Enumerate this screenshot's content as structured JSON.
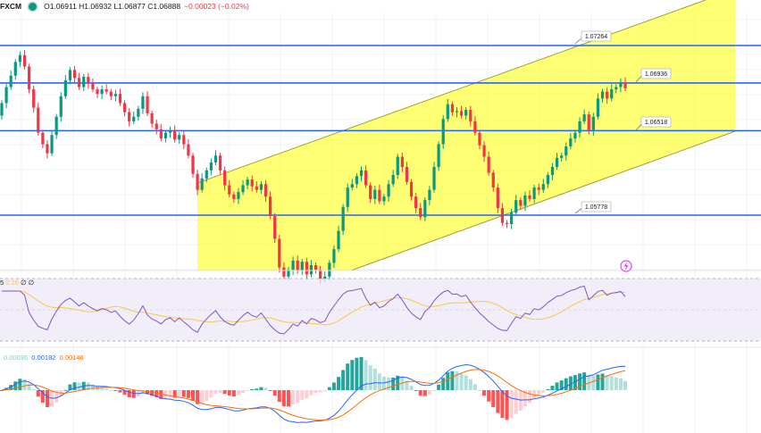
{
  "header": {
    "symbol": "FXCM",
    "ohlc": "O1.06911 H1.06932 L1.06877 C1.06888",
    "change": "−0.00023 (−0.02%)"
  },
  "rsi_legend": {
    "prefix": "5",
    "value": "0.26",
    "extra": "∅ ∅"
  },
  "macd_legend": {
    "hist": "0.00036",
    "macd": "0.00182",
    "signal": "0.00146"
  },
  "alert_icon": "lightning-icon",
  "colors": {
    "up": "#089981",
    "down": "#f23645",
    "level_line": "#2962ff",
    "channel_fill": "#ffff00",
    "rsi_line": "#7e57c2",
    "rsi_ma": "#f7c948",
    "rsi_band": "#ede7f6",
    "macd_line": "#2962ff",
    "signal_line": "#ff6d00"
  },
  "chart_data": {
    "type": "candlestick",
    "levels": [
      {
        "value": 1.07264,
        "label": "1.07264"
      },
      {
        "value": 1.06936,
        "label": "1.06936"
      },
      {
        "value": 1.06518,
        "label": "1.06518"
      },
      {
        "value": 1.05778,
        "label": "1.05778"
      }
    ],
    "channel": {
      "type": "ascending parallel channel",
      "color": "yellow"
    },
    "closes": [
      1.0676,
      1.069,
      1.07,
      1.0712,
      1.0718,
      1.0708,
      1.0688,
      1.0672,
      1.065,
      1.064,
      1.0632,
      1.0648,
      1.0664,
      1.0682,
      1.0696,
      1.0705,
      1.0698,
      1.069,
      1.0699,
      1.0693,
      1.0688,
      1.0684,
      1.0688,
      1.0686,
      1.0682,
      1.0684,
      1.0676,
      1.0668,
      1.066,
      1.0664,
      1.0671,
      1.0682,
      1.0667,
      1.0658,
      1.0653,
      1.0645,
      1.065,
      1.0652,
      1.0644,
      1.0648,
      1.064,
      1.063,
      1.0614,
      1.06,
      1.061,
      1.0617,
      1.0624,
      1.063,
      1.0617,
      1.0604,
      1.0596,
      1.0592,
      1.0598,
      1.0604,
      1.0609,
      1.0603,
      1.06,
      1.0605,
      1.0594,
      1.0577,
      1.0557,
      1.0532,
      1.0524,
      1.053,
      1.0538,
      1.0529,
      1.0537,
      1.0526,
      1.0534,
      1.053,
      1.0522,
      1.0524,
      1.0536,
      1.0548,
      1.0564,
      1.0585,
      1.0602,
      1.0605,
      1.0612,
      1.0617,
      1.0604,
      1.0592,
      1.06,
      1.059,
      1.0594,
      1.0605,
      1.0613,
      1.0629,
      1.062,
      1.0607,
      1.0594,
      1.0584,
      1.0576,
      1.0591,
      1.06,
      1.062,
      1.064,
      1.0662,
      1.0675,
      1.0668,
      1.0669,
      1.0665,
      1.067,
      1.066,
      1.065,
      1.0639,
      1.0629,
      1.0615,
      1.0602,
      1.0584,
      1.0571,
      1.057,
      1.058,
      1.0591,
      1.0586,
      1.0595,
      1.0592,
      1.0602,
      1.06,
      1.0605,
      1.0613,
      1.062,
      1.0628,
      1.063,
      1.0638,
      1.0645,
      1.065,
      1.066,
      1.0666,
      1.0652,
      1.0664,
      1.068,
      1.0686,
      1.068,
      1.0688,
      1.069,
      1.0694,
      1.0689
    ],
    "rsi": {
      "upper_band": 70,
      "lower_band": 30,
      "range": [
        0,
        100
      ]
    },
    "macd": {
      "histogram": "colored bars",
      "lines": [
        "MACD",
        "Signal"
      ]
    }
  }
}
